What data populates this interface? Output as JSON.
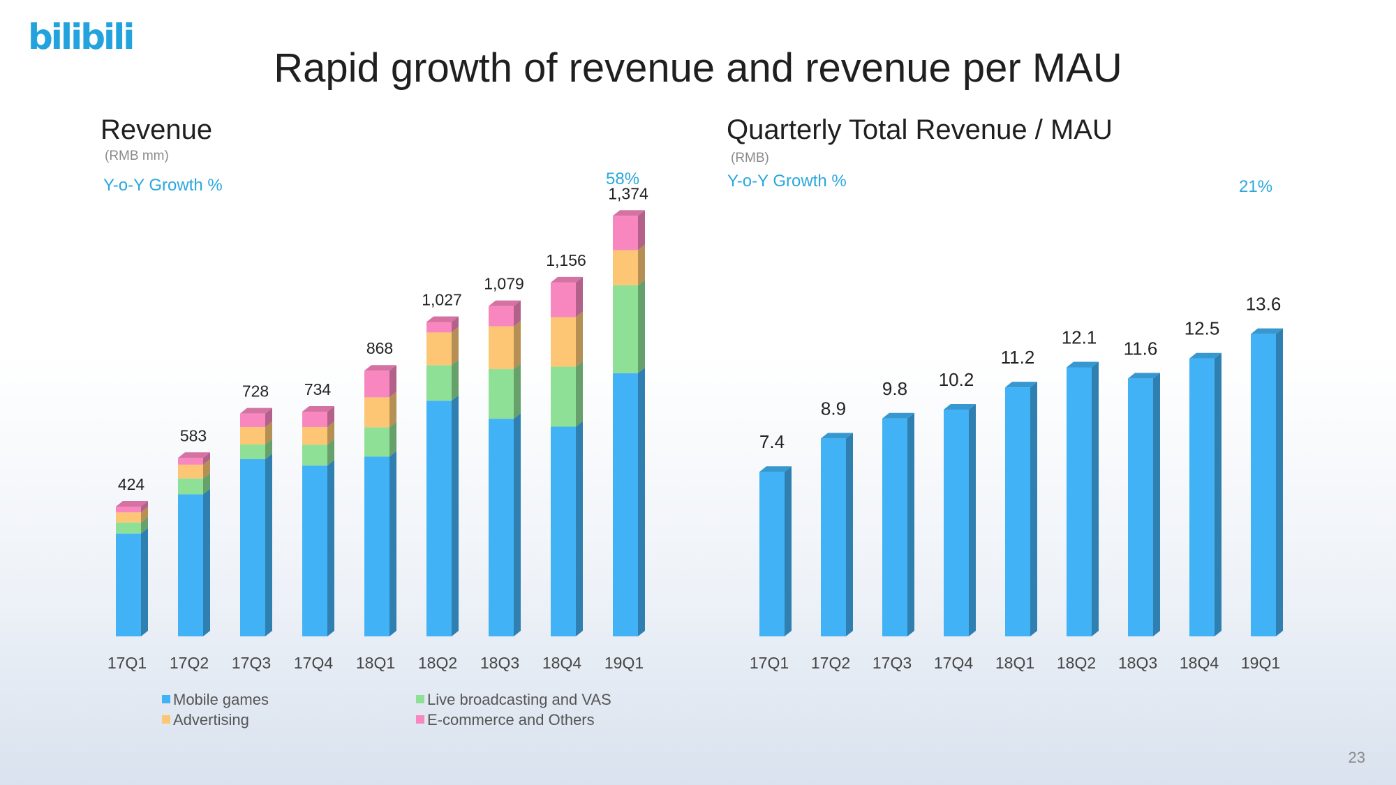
{
  "logo_text": "bilibili",
  "slide_title": "Rapid growth of revenue and revenue per MAU",
  "page_number": "23",
  "colors": {
    "mobile_games": "#41b2f5",
    "live_broadcasting": "#8ee096",
    "advertising": "#fcc674",
    "ecommerce": "#f987bf",
    "mau_bar": "#41b2f5",
    "growth_text": "#2aa7dd"
  },
  "legend": [
    {
      "name": "Mobile games",
      "color": "#41b2f5"
    },
    {
      "name": "Advertising",
      "color": "#fcc674"
    },
    {
      "name": "Live broadcasting and VAS",
      "color": "#8ee096"
    },
    {
      "name": "E-commerce and Others",
      "color": "#f987bf"
    }
  ],
  "chart_data": [
    {
      "type": "bar",
      "stacked": true,
      "title": "Revenue",
      "unit": "(RMB mm)",
      "growth_label": "Y-o-Y Growth %",
      "growth_value": "58%",
      "categories": [
        "17Q1",
        "17Q2",
        "17Q3",
        "17Q4",
        "18Q1",
        "18Q2",
        "18Q3",
        "18Q4",
        "19Q1"
      ],
      "totals": [
        424,
        583,
        728,
        734,
        868,
        1027,
        1079,
        1156,
        1374
      ],
      "total_labels": [
        "424",
        "583",
        "728",
        "734",
        "868",
        "1,027",
        "1,079",
        "1,156",
        "1,374"
      ],
      "series": [
        {
          "name": "Mobile games",
          "values": [
            336,
            464,
            579,
            558,
            587,
            770,
            711,
            685,
            860
          ]
        },
        {
          "name": "Live broadcasting and VAS",
          "values": [
            36,
            52,
            48,
            68,
            96,
            116,
            162,
            196,
            287
          ]
        },
        {
          "name": "Advertising",
          "values": [
            33,
            45,
            57,
            58,
            98,
            107,
            140,
            162,
            115
          ]
        },
        {
          "name": "E-commerce and Others",
          "values": [
            19,
            22,
            44,
            50,
            87,
            34,
            66,
            113,
            112
          ]
        }
      ],
      "ylim": [
        0,
        1500
      ]
    },
    {
      "type": "bar",
      "title": "Quarterly Total Revenue / MAU",
      "unit": "(RMB)",
      "growth_label": "Y-o-Y Growth %",
      "growth_value": "21%",
      "categories": [
        "17Q1",
        "17Q2",
        "17Q3",
        "17Q4",
        "18Q1",
        "18Q2",
        "18Q3",
        "18Q4",
        "19Q1"
      ],
      "values": [
        7.4,
        8.9,
        9.8,
        10.2,
        11.2,
        12.1,
        11.6,
        12.5,
        13.6
      ],
      "value_labels": [
        "7.4",
        "8.9",
        "9.8",
        "10.2",
        "11.2",
        "12.1",
        "11.6",
        "12.5",
        "13.6"
      ],
      "ylim": [
        0,
        14.5
      ]
    }
  ]
}
